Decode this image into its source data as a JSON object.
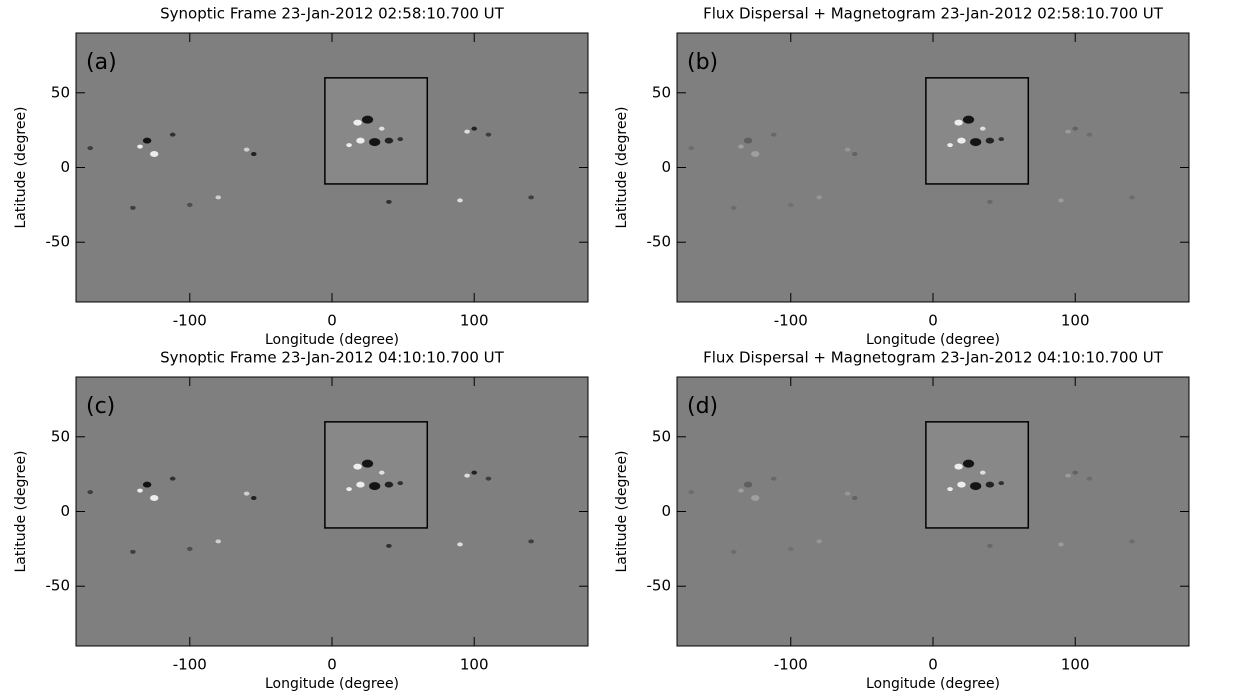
{
  "chart_data": [
    {
      "type": "image",
      "title": "Synoptic Frame 23-Jan-2012 02:58:10.700 UT",
      "panel_label": "(a)",
      "x_label": "Longitude (degree)",
      "y_label": "Latitude (degree)",
      "xlim": [
        -180,
        180
      ],
      "ylim": [
        -90,
        90
      ],
      "xticks": [
        -100,
        0,
        100
      ],
      "yticks": [
        -50,
        0,
        50
      ],
      "box": {
        "xlim": [
          -5,
          67
        ],
        "ylim": [
          -11,
          60
        ]
      }
    },
    {
      "type": "image",
      "title": "Flux Dispersal + Magnetogram 23-Jan-2012 02:58:10.700 UT",
      "panel_label": "(b)",
      "x_label": "Longitude (degree)",
      "y_label": "Latitude (degree)",
      "xlim": [
        -180,
        180
      ],
      "ylim": [
        -90,
        90
      ],
      "xticks": [
        -100,
        0,
        100
      ],
      "yticks": [
        -50,
        0,
        50
      ],
      "box": {
        "xlim": [
          -5,
          67
        ],
        "ylim": [
          -11,
          60
        ]
      }
    },
    {
      "type": "image",
      "title": "Synoptic Frame 23-Jan-2012 04:10:10.700 UT",
      "panel_label": "(c)",
      "x_label": "Longitude (degree)",
      "y_label": "Latitude (degree)",
      "xlim": [
        -180,
        180
      ],
      "ylim": [
        -90,
        90
      ],
      "xticks": [
        -100,
        0,
        100
      ],
      "yticks": [
        -50,
        0,
        50
      ],
      "box": {
        "xlim": [
          -5,
          67
        ],
        "ylim": [
          -11,
          60
        ]
      }
    },
    {
      "type": "image",
      "title": "Flux Dispersal + Magnetogram 23-Jan-2012 04:10:10.700 UT",
      "panel_label": "(d)",
      "x_label": "Longitude (degree)",
      "y_label": "Latitude (degree)",
      "xlim": [
        -180,
        180
      ],
      "ylim": [
        -90,
        90
      ],
      "xticks": [
        -100,
        0,
        100
      ],
      "yticks": [
        -50,
        0,
        50
      ],
      "box": {
        "xlim": [
          -5,
          67
        ],
        "ylim": [
          -11,
          60
        ]
      }
    }
  ]
}
